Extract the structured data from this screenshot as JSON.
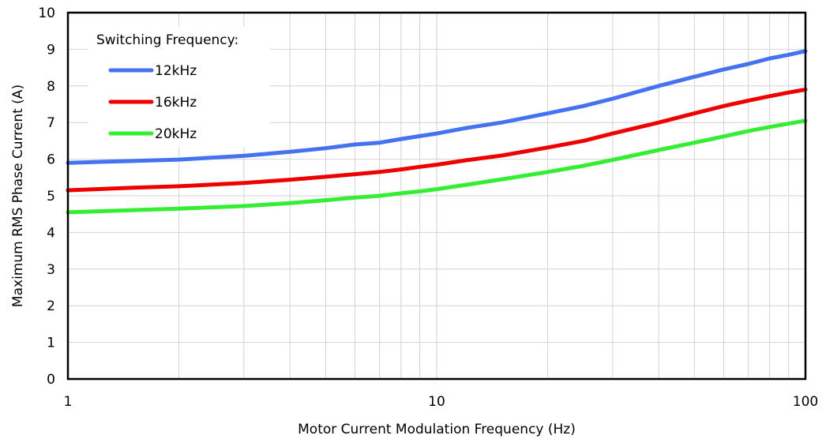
{
  "chart_data": {
    "type": "line",
    "xlabel": "Motor Current Modulation Frequency (Hz)",
    "ylabel": "Maximum RMS Phase Current (A)",
    "xscale": "log",
    "xlim": [
      1,
      100
    ],
    "ylim": [
      0,
      10
    ],
    "x_tick_labels": [
      "1",
      "10",
      "100"
    ],
    "y_tick_labels": [
      "0",
      "1",
      "2",
      "3",
      "4",
      "5",
      "6",
      "7",
      "8",
      "9",
      "10"
    ],
    "grid": true,
    "legend": {
      "title": "Switching Frequency:",
      "placement": "top-left"
    },
    "series": [
      {
        "name": "12kHz",
        "color": "#4472f0",
        "x": [
          1,
          1.5,
          2,
          3,
          4,
          5,
          6,
          7,
          8,
          9,
          10,
          12,
          15,
          20,
          25,
          30,
          40,
          50,
          60,
          70,
          80,
          90,
          100
        ],
        "y": [
          5.9,
          5.95,
          5.99,
          6.09,
          6.2,
          6.3,
          6.4,
          6.45,
          6.55,
          6.63,
          6.7,
          6.85,
          7.0,
          7.25,
          7.45,
          7.65,
          8.0,
          8.25,
          8.45,
          8.6,
          8.75,
          8.85,
          8.95
        ]
      },
      {
        "name": "16kHz",
        "color": "#ee0000",
        "x": [
          1,
          1.5,
          2,
          3,
          4,
          5,
          6,
          7,
          8,
          9,
          10,
          12,
          15,
          20,
          25,
          30,
          40,
          50,
          60,
          70,
          80,
          90,
          100
        ],
        "y": [
          5.15,
          5.22,
          5.26,
          5.35,
          5.44,
          5.52,
          5.59,
          5.65,
          5.72,
          5.79,
          5.85,
          5.97,
          6.1,
          6.32,
          6.5,
          6.7,
          7.0,
          7.25,
          7.45,
          7.6,
          7.72,
          7.82,
          7.9
        ]
      },
      {
        "name": "20kHz",
        "color": "#33ee33",
        "x": [
          1,
          1.5,
          2,
          3,
          4,
          5,
          6,
          7,
          8,
          9,
          10,
          12,
          15,
          20,
          25,
          30,
          40,
          50,
          60,
          70,
          80,
          90,
          100
        ],
        "y": [
          4.55,
          4.61,
          4.65,
          4.72,
          4.8,
          4.88,
          4.95,
          5.0,
          5.07,
          5.12,
          5.18,
          5.3,
          5.45,
          5.65,
          5.82,
          5.98,
          6.25,
          6.45,
          6.62,
          6.77,
          6.88,
          6.97,
          7.05
        ]
      }
    ]
  }
}
